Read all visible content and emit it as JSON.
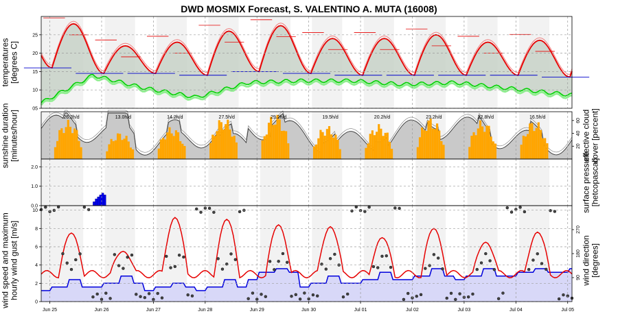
{
  "chart_data": {
    "type": "line",
    "title": "DWD MOSMIX Forecast, S. VALENTINO A. MUTA (16008)",
    "x_labels": [
      "Jun 25",
      "Jun 26",
      "Jun 27",
      "Jun 28",
      "Jun 29",
      "Jun 30",
      "Jul 01",
      "Jul 02",
      "Jul 03",
      "Jul 04",
      "Jul 05"
    ],
    "panels": [
      {
        "name": "temperature",
        "ylabel_lines": [
          "temperatures",
          "[degrees C]"
        ],
        "ylim": [
          5,
          30
        ],
        "yticks": [
          5,
          10,
          15,
          20,
          25
        ],
        "tick_labels": [
          "05",
          "10",
          "15",
          "20",
          "25"
        ],
        "daily_max_c": [
          28,
          22,
          23,
          26,
          27.5,
          24,
          24,
          25,
          23,
          23.5
        ],
        "daily_min_c": [
          16,
          14.5,
          14.5,
          14,
          15,
          14.5,
          14,
          14,
          14,
          14,
          13.5
        ],
        "dewpoint_daily_c": [
          6.5,
          14,
          10.5,
          8,
          12,
          12.5,
          12.5,
          11.5,
          12,
          10.5,
          9
        ]
      },
      {
        "name": "sunshine",
        "ylabel_lines": [
          "sunshine duration",
          "[minutes/hour]"
        ],
        "ylim": [
          0,
          70
        ],
        "right_ylabel_lines": [
          "effective cloud",
          "cover [percent]"
        ],
        "right_ticks": [
          20,
          40,
          60
        ],
        "daily_sunshine": [
          "26.2h/d",
          "13.0h/d",
          "14.2h/d",
          "27.5h/d",
          "29.2h/d",
          "19.5h/d",
          "20.2h/d",
          "23.2h/d",
          "22.8h/d",
          "16.5h/d"
        ],
        "daily_peak_minutes": [
          58,
          40,
          48,
          62,
          68,
          50,
          52,
          62,
          58,
          58
        ]
      },
      {
        "name": "precipitation",
        "ylim": [
          0,
          2.4
        ],
        "yticks": [
          0,
          1,
          2
        ],
        "tick_labels": [
          "0.0",
          "1.0",
          "2.0"
        ],
        "right_ylabel_lines": [
          "surface pressure",
          "[hetcopascal]"
        ],
        "bars": [
          {
            "hour": 24,
            "value": 0.2
          },
          {
            "hour": 25,
            "value": 0.35
          },
          {
            "hour": 26,
            "value": 0.45
          },
          {
            "hour": 27,
            "value": 0.55
          },
          {
            "hour": 28,
            "value": 0.65
          },
          {
            "hour": 29,
            "value": 0.55
          }
        ]
      },
      {
        "name": "wind",
        "ylabel_lines": [
          "wind speed and maximum",
          "hourly wind gust [m/s]"
        ],
        "ylim": [
          0,
          10.5
        ],
        "yticks": [
          0,
          2,
          4,
          6,
          8,
          10
        ],
        "tick_labels": [
          "0",
          "2",
          "4",
          "6",
          "8",
          "10"
        ],
        "right_ylabel_lines": [
          "wind direction",
          "[degrees]"
        ],
        "right_ticks": [
          90,
          180,
          270
        ],
        "gust_daily_peak_ms": [
          7.5,
          5.5,
          9.2,
          9.0,
          8.4,
          8.2,
          7.0,
          8.0,
          6.5,
          7.6
        ],
        "speed_levels_ms": [
          1.6,
          2.0,
          1.5,
          1.6,
          3.0,
          2.0,
          2.4,
          2.8,
          2.8,
          3.1,
          3.5
        ]
      }
    ]
  }
}
